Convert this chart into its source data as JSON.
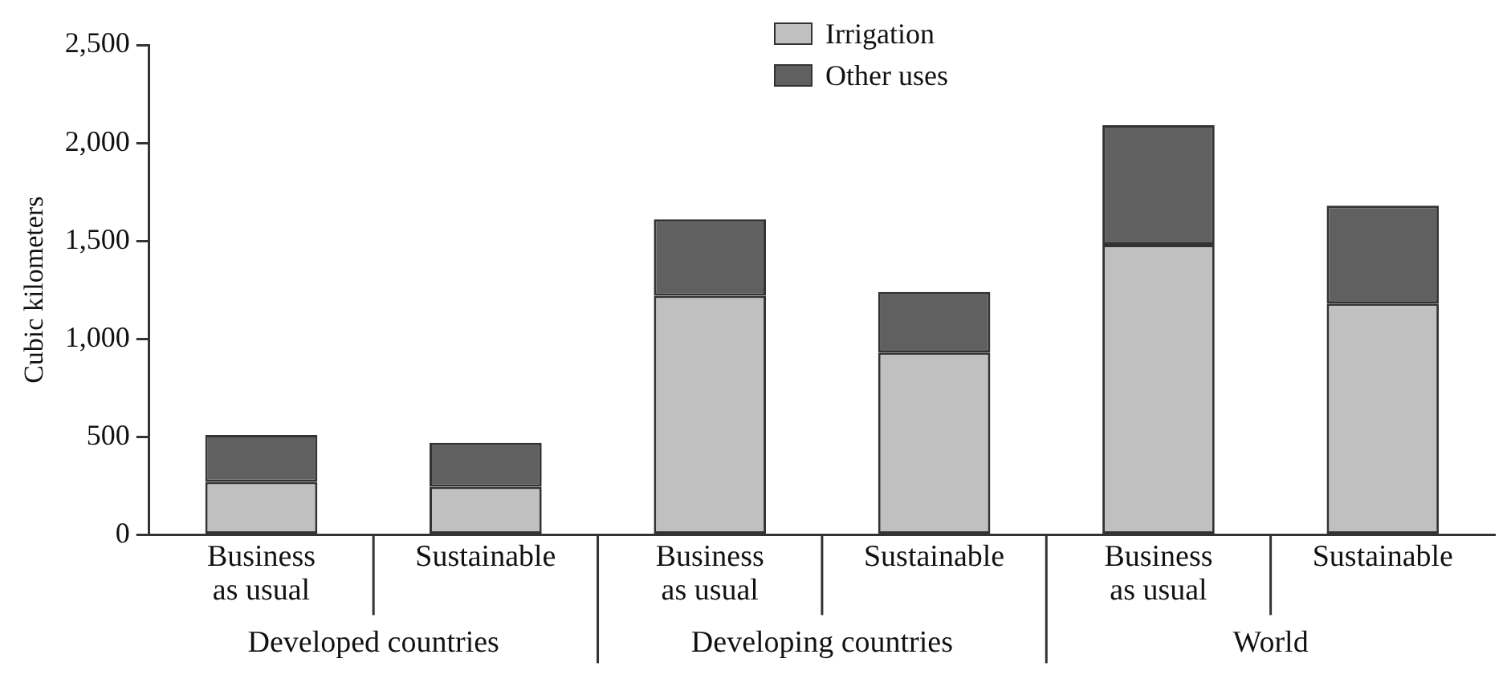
{
  "chart_data": {
    "type": "bar",
    "stacked": true,
    "ylabel": "Cubic kilometers",
    "categories": [
      "Business as usual",
      "Sustainable",
      "Business as usual",
      "Sustainable",
      "Business as usual",
      "Sustainable"
    ],
    "annotations": [
      "Developed countries",
      "Developing countries",
      "World"
    ],
    "series": [
      {
        "name": "Irrigation",
        "color": "#c0c0c0",
        "values": [
          270,
          245,
          1220,
          930,
          1480,
          1180
        ]
      },
      {
        "name": "Other uses",
        "color": "#606060",
        "values": [
          240,
          225,
          390,
          310,
          610,
          500
        ]
      }
    ],
    "ylim": [
      0,
      2500
    ],
    "yticks": [
      0,
      {
        "value": 500,
        "label": "500"
      },
      {
        "value": 1000,
        "label": "1,000"
      },
      {
        "value": 1500,
        "label": "1,500"
      },
      {
        "value": 2000,
        "label": "2,000"
      },
      {
        "value": 2500,
        "label": "2,500"
      }
    ],
    "grid": false,
    "legend": "top"
  }
}
